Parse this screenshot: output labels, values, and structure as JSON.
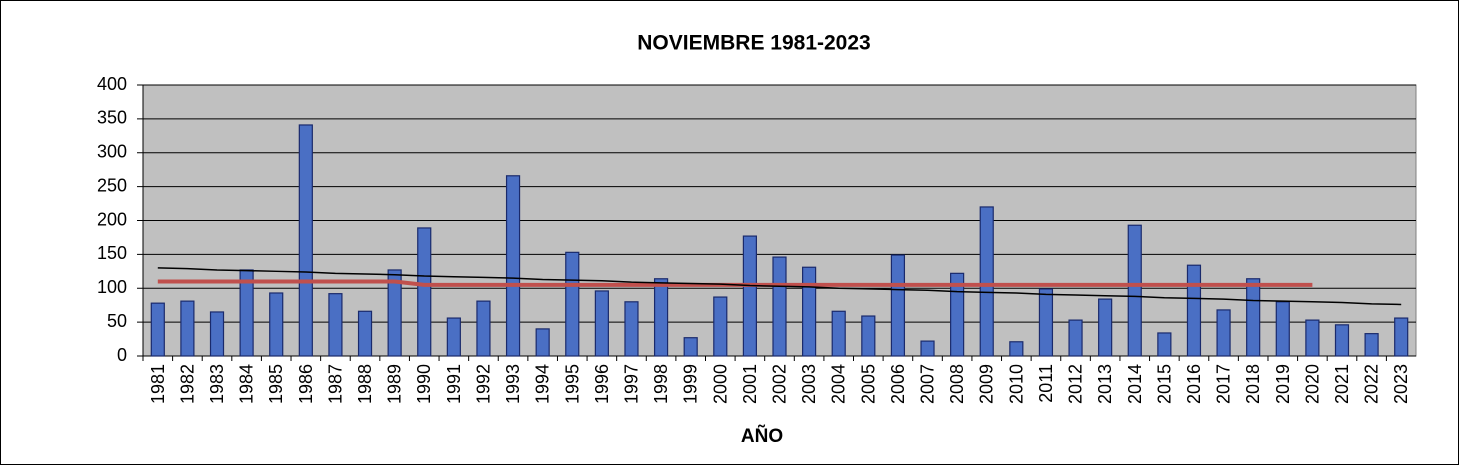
{
  "chart_data": {
    "type": "bar",
    "title": "NOVIEMBRE 1981-2023",
    "x_label": "AÑO",
    "categories": [
      "1981",
      "1982",
      "1983",
      "1984",
      "1985",
      "1986",
      "1987",
      "1988",
      "1989",
      "1990",
      "1991",
      "1992",
      "1993",
      "1994",
      "1995",
      "1996",
      "1997",
      "1998",
      "1999",
      "2000",
      "2001",
      "2002",
      "2003",
      "2004",
      "2005",
      "2006",
      "2007",
      "2008",
      "2009",
      "2010",
      "2011",
      "2012",
      "2013",
      "2014",
      "2015",
      "2016",
      "2017",
      "2018",
      "2019",
      "2020",
      "2021",
      "2022",
      "2023"
    ],
    "series": [
      {
        "type": "bar",
        "color": "#4a6fc4",
        "values": [
          78,
          81,
          65,
          127,
          93,
          341,
          92,
          66,
          127,
          189,
          56,
          81,
          266,
          40,
          153,
          96,
          80,
          114,
          27,
          87,
          177,
          146,
          131,
          66,
          59,
          149,
          22,
          122,
          220,
          21,
          99,
          53,
          84,
          193,
          34,
          134,
          68,
          114,
          80,
          53,
          46,
          33,
          56
        ]
      },
      {
        "type": "line",
        "color": "#c0504d",
        "values": [
          110,
          110,
          110,
          110,
          110,
          110,
          110,
          110,
          110,
          105,
          105,
          105,
          105,
          105,
          105,
          105,
          105,
          105,
          105,
          105,
          105,
          105,
          105,
          105,
          105,
          105,
          105,
          105,
          105,
          105,
          105,
          105,
          105,
          105,
          105,
          105,
          105,
          105,
          105,
          105,
          null,
          null,
          null
        ]
      },
      {
        "type": "line",
        "color": "#000000",
        "values": [
          130,
          129,
          127,
          126,
          125,
          124,
          122,
          121,
          120,
          118,
          117,
          116,
          115,
          113,
          112,
          111,
          109,
          108,
          107,
          106,
          104,
          103,
          102,
          100,
          99,
          98,
          97,
          95,
          94,
          93,
          91,
          90,
          89,
          88,
          86,
          85,
          84,
          82,
          81,
          80,
          79,
          77,
          76
        ]
      }
    ],
    "ylim": [
      0,
      400
    ],
    "yticks": [
      0,
      50,
      100,
      150,
      200,
      250,
      300,
      350,
      400
    ],
    "grid": true,
    "plot_background": "#c0c0c0"
  }
}
